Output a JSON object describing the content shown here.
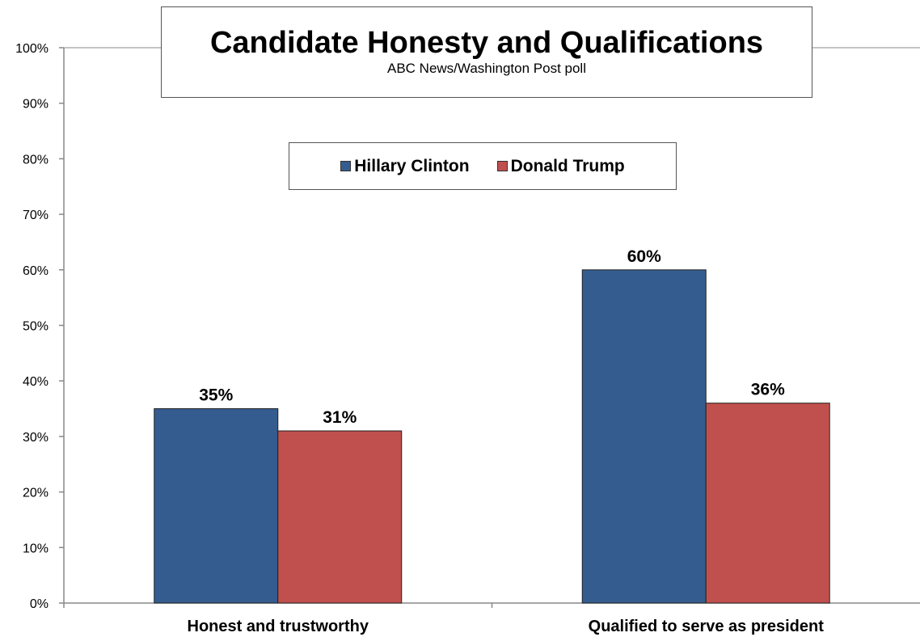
{
  "chart_data": {
    "type": "bar",
    "title": "Candidate Honesty and Qualifications",
    "subtitle": "ABC News/Washington  Post poll",
    "categories": [
      "Honest and trustworthy",
      "Qualified to serve as president"
    ],
    "series": [
      {
        "name": "Hillary Clinton",
        "values": [
          35,
          60
        ],
        "labels": [
          "35%",
          "60%"
        ],
        "color": "#345C8F"
      },
      {
        "name": "Donald Trump",
        "values": [
          31,
          36
        ],
        "labels": [
          "31%",
          "36%"
        ],
        "color": "#C0504D"
      }
    ],
    "ylim": [
      0,
      100
    ],
    "yticks": [
      0,
      10,
      20,
      30,
      40,
      50,
      60,
      70,
      80,
      90,
      100
    ],
    "ytick_labels": [
      "0%",
      "10%",
      "20%",
      "30%",
      "40%",
      "50%",
      "60%",
      "70%",
      "80%",
      "90%",
      "100%"
    ],
    "xlabel": "",
    "ylabel": "",
    "grid": false,
    "legend_position": "top-center"
  }
}
